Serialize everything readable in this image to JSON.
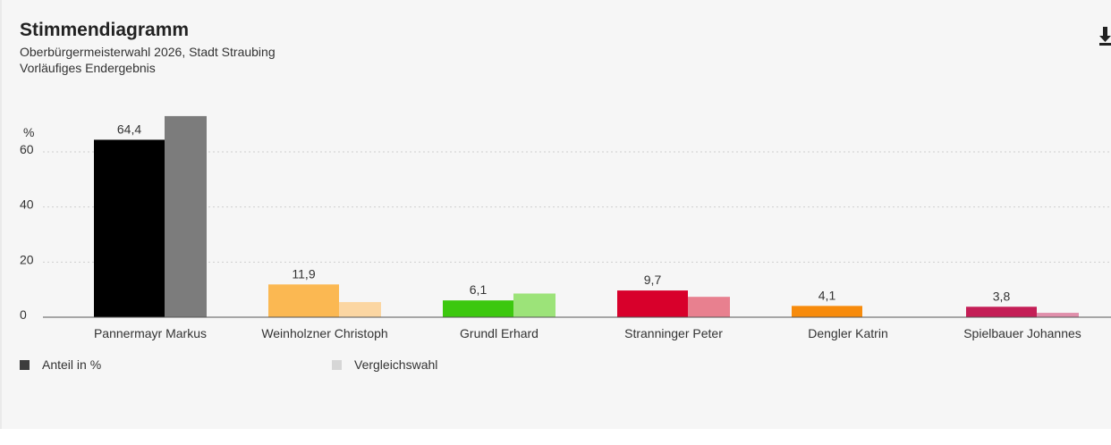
{
  "header": {
    "title": "Stimmendiagramm",
    "subtitle_line1": "Oberbürgermeisterwahl 2026, Stadt Straubing",
    "subtitle_line2": "Vorläufiges Endergebnis"
  },
  "download_icon": "download-icon",
  "legend": {
    "current_label": "Anteil in %",
    "current_color": "#3c3c3c",
    "comparison_label": "Vergleichswahl",
    "comparison_color": "#d6d6d6"
  },
  "chart_data": {
    "type": "bar",
    "title": "Stimmendiagramm",
    "ylabel": "%",
    "xlabel": "",
    "ylim": [
      0,
      73
    ],
    "yticks": [
      0,
      20,
      40,
      60
    ],
    "grid": true,
    "categories": [
      "Pannermayr Markus",
      "Weinholzner Christoph",
      "Grundl Erhard",
      "Stranninger Peter",
      "Dengler Katrin",
      "Spielbauer Johannes"
    ],
    "series": [
      {
        "name": "Anteil in %",
        "values": [
          64.4,
          11.9,
          6.1,
          9.7,
          4.1,
          3.8
        ],
        "labels": [
          "64,4",
          "11,9",
          "6,1",
          "9,7",
          "4,1",
          "3,8"
        ],
        "colors": [
          "#000000",
          "#fbb852",
          "#3cc80e",
          "#d8002b",
          "#f78b0c",
          "#c41e56"
        ]
      },
      {
        "name": "Vergleichswahl",
        "values": [
          73.0,
          5.5,
          8.6,
          7.4,
          null,
          1.6
        ],
        "colors": [
          "#7c7c7c",
          "#fbd6a2",
          "#9ce379",
          "#e8808f",
          "#f9c18a",
          "#e08fab"
        ]
      }
    ]
  }
}
